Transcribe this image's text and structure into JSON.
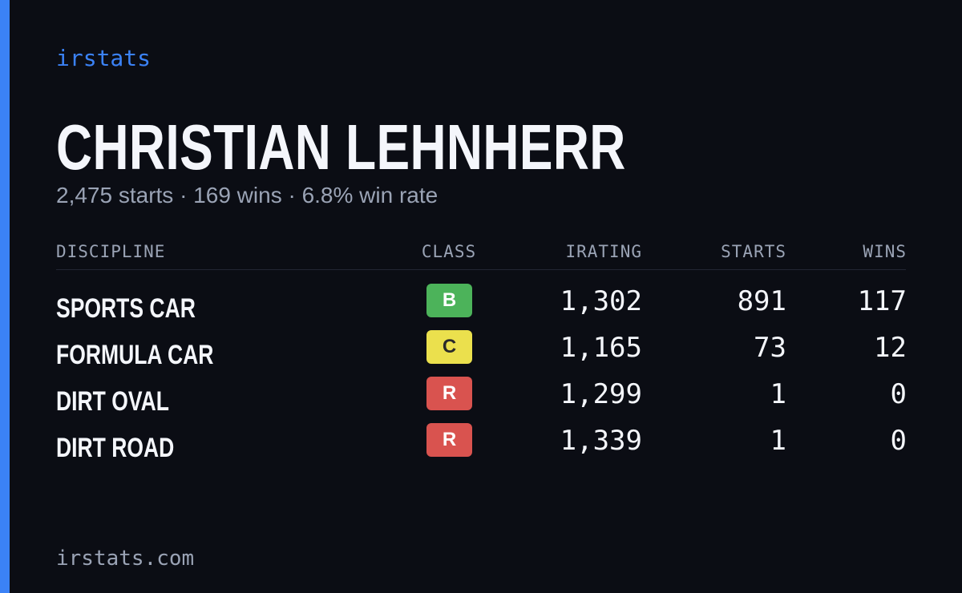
{
  "brand": "irstats",
  "driver": {
    "name": "CHRISTIAN LEHNHERR",
    "summary": "2,475 starts · 169 wins · 6.8% win rate"
  },
  "table": {
    "headers": [
      "DISCIPLINE",
      "CLASS",
      "IRATING",
      "STARTS",
      "WINS"
    ],
    "rows": [
      {
        "discipline": "SPORTS CAR",
        "class": "B",
        "class_color": "#4cb35a",
        "class_text_color": "#ffffff",
        "irating": "1,302",
        "starts": "891",
        "wins": "117"
      },
      {
        "discipline": "FORMULA CAR",
        "class": "C",
        "class_color": "#ebe04d",
        "class_text_color": "#2a2a2a",
        "irating": "1,165",
        "starts": "73",
        "wins": "12"
      },
      {
        "discipline": "DIRT OVAL",
        "class": "R",
        "class_color": "#d9534f",
        "class_text_color": "#ffffff",
        "irating": "1,299",
        "starts": "1",
        "wins": "0"
      },
      {
        "discipline": "DIRT ROAD",
        "class": "R",
        "class_color": "#d9534f",
        "class_text_color": "#ffffff",
        "irating": "1,339",
        "starts": "1",
        "wins": "0"
      }
    ]
  },
  "footer": "irstats.com"
}
